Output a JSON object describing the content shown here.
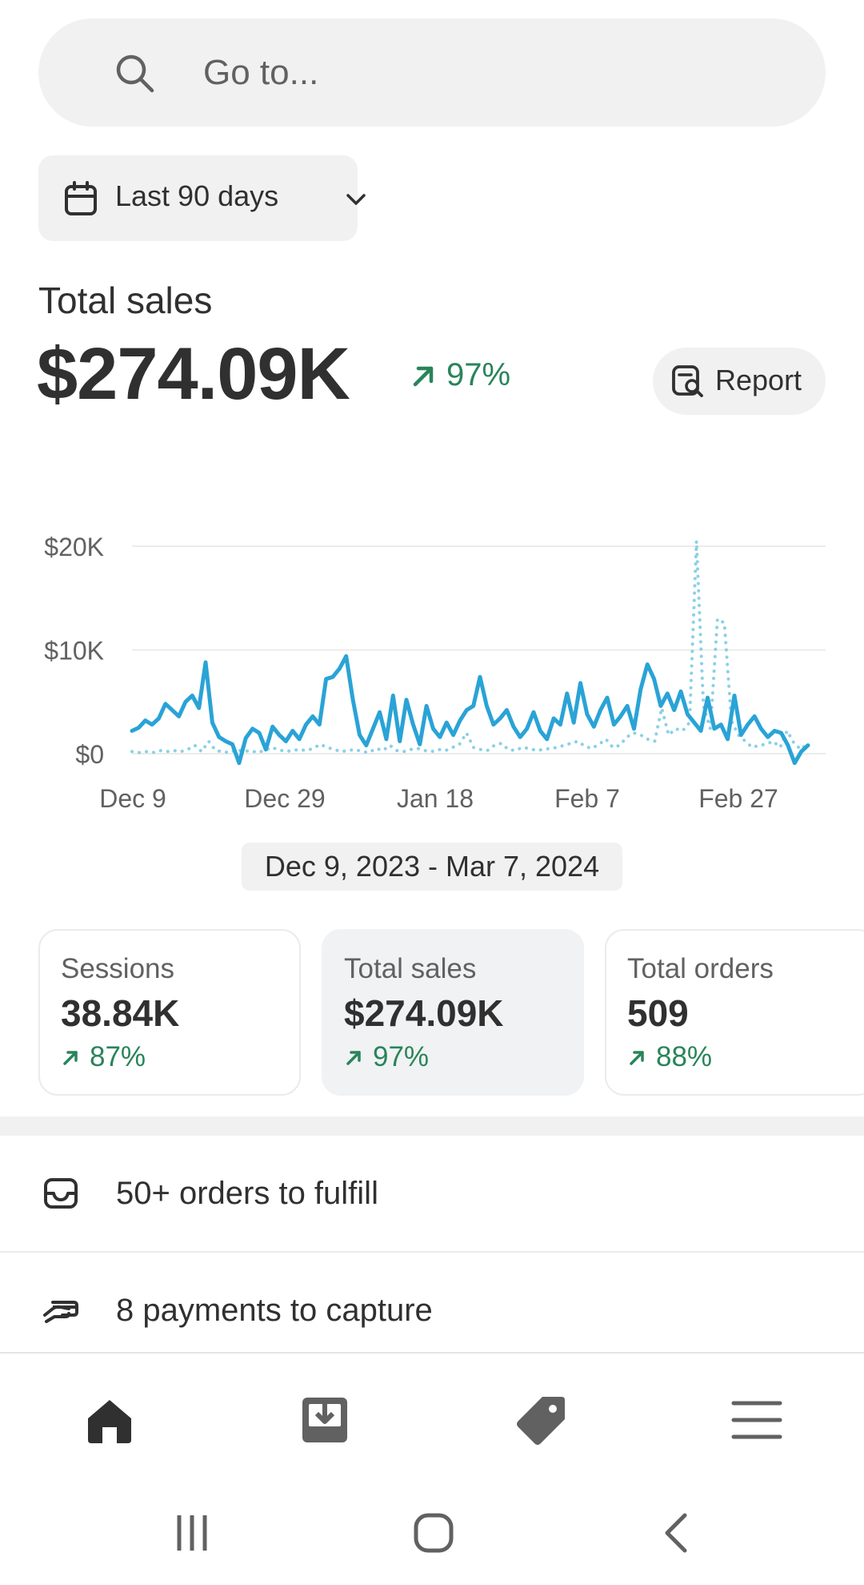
{
  "search": {
    "placeholder": "Go to..."
  },
  "date_filter": {
    "label": "Last 90 days"
  },
  "total_sales": {
    "label": "Total sales",
    "value": "$274.09K",
    "change": "97%",
    "report_label": "Report"
  },
  "chart_data": {
    "type": "line",
    "y_ticks": [
      "$20K",
      "$10K",
      "$0"
    ],
    "x_ticks": [
      "Dec 9",
      "Dec 29",
      "Jan 18",
      "Feb 7",
      "Feb 27"
    ],
    "ylim": [
      0,
      20000
    ],
    "grid": true,
    "colors": {
      "current": "#2aa3d6",
      "previous": "#8ad1e6"
    },
    "series": [
      {
        "style": "solid",
        "values": [
          2200,
          2500,
          3200,
          2800,
          3400,
          4800,
          4200,
          3600,
          5000,
          5600,
          4400,
          8800,
          3000,
          1600,
          1200,
          900,
          -900,
          1500,
          2400,
          2000,
          400,
          2600,
          1800,
          1200,
          2200,
          1400,
          2800,
          3600,
          2800,
          7200,
          7400,
          8200,
          9400,
          5200,
          1800,
          800,
          2400,
          4000,
          1400,
          5600,
          1200,
          5200,
          2800,
          900,
          4600,
          2400,
          1600,
          3000,
          1800,
          3200,
          4200,
          4600,
          7400,
          4600,
          2800,
          3400,
          4200,
          2600,
          1600,
          2400,
          4000,
          2200,
          1400,
          3400,
          2800,
          5800,
          3000,
          6800,
          3800,
          2600,
          4200,
          5400,
          2800,
          3600,
          4600,
          2400,
          6200,
          8600,
          7200,
          4600,
          5800,
          4200,
          6000,
          3800,
          3000,
          2200,
          5400,
          2400,
          2800,
          1400,
          5600,
          1800,
          2800,
          3600,
          2400,
          1600,
          2200,
          2000,
          800,
          -900,
          200,
          800
        ]
      },
      {
        "style": "dotted",
        "values": [
          200,
          100,
          200,
          100,
          300,
          200,
          300,
          200,
          400,
          800,
          200,
          1200,
          300,
          200,
          100,
          400,
          200,
          300,
          100,
          300,
          600,
          400,
          200,
          300,
          400,
          300,
          500,
          900,
          600,
          400,
          200,
          300,
          400,
          200,
          100,
          500,
          300,
          800,
          300,
          200,
          400,
          500,
          300,
          200,
          400,
          300,
          600,
          900,
          2000,
          600,
          400,
          300,
          800,
          1000,
          400,
          300,
          600,
          500,
          300,
          400,
          500,
          600,
          800,
          1000,
          1200,
          700,
          500,
          900,
          1400,
          600,
          800,
          1600,
          2000,
          1800,
          1400,
          1200,
          4400,
          1800,
          2400,
          2200,
          3000,
          20500,
          4600,
          2400,
          13000,
          12600,
          3200,
          1800,
          1200,
          600,
          800,
          900,
          1200,
          600,
          2200,
          1000,
          400,
          1100
        ]
      }
    ]
  },
  "date_range": "Dec 9, 2023 - Mar 7, 2024",
  "metrics": [
    {
      "title": "Sessions",
      "value": "38.84K",
      "change": "87%"
    },
    {
      "title": "Total sales",
      "value": "$274.09K",
      "change": "97%"
    },
    {
      "title": "Total orders",
      "value": "509",
      "change": "88%"
    }
  ],
  "tasks": [
    {
      "label": "50+ orders to fulfill"
    },
    {
      "label": "8 payments to capture"
    }
  ],
  "nav": [
    "home-icon",
    "orders-icon",
    "products-icon",
    "menu-icon"
  ]
}
